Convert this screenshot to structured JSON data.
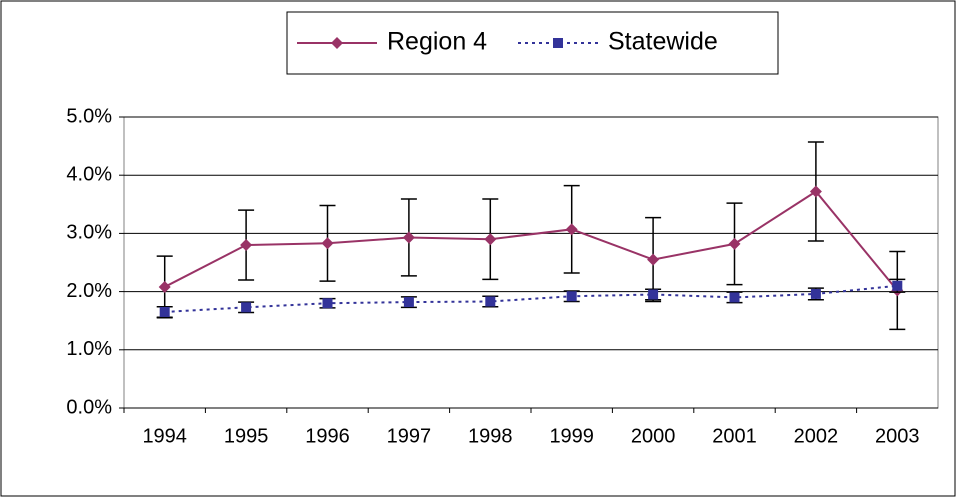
{
  "chart_data": {
    "type": "line",
    "categories": [
      "1994",
      "1995",
      "1996",
      "1997",
      "1998",
      "1999",
      "2000",
      "2001",
      "2002",
      "2003"
    ],
    "series": [
      {
        "name": "Region 4",
        "color": "#993366",
        "marker": "diamond",
        "dash": "solid",
        "values": [
          2.08,
          2.8,
          2.83,
          2.93,
          2.9,
          3.07,
          2.55,
          2.82,
          3.72,
          2.02
        ],
        "errors": [
          0.53,
          0.6,
          0.65,
          0.66,
          0.69,
          0.75,
          0.72,
          0.7,
          0.85,
          0.67
        ]
      },
      {
        "name": "Statewide",
        "color": "#333399",
        "marker": "square",
        "dash": "dotted",
        "values": [
          1.65,
          1.73,
          1.8,
          1.82,
          1.83,
          1.92,
          1.95,
          1.9,
          1.96,
          2.1
        ],
        "errors": [
          0.09,
          0.09,
          0.08,
          0.09,
          0.09,
          0.09,
          0.09,
          0.09,
          0.1,
          0.11
        ]
      }
    ],
    "ylim": [
      0,
      5
    ],
    "yticks": [
      {
        "value": 0,
        "label": "0.0%"
      },
      {
        "value": 1,
        "label": "1.0%"
      },
      {
        "value": 2,
        "label": "2.0%"
      },
      {
        "value": 3,
        "label": "3.0%"
      },
      {
        "value": 4,
        "label": "4.0%"
      },
      {
        "value": 5,
        "label": "5.0%"
      }
    ],
    "grid": true,
    "legend": "top"
  }
}
